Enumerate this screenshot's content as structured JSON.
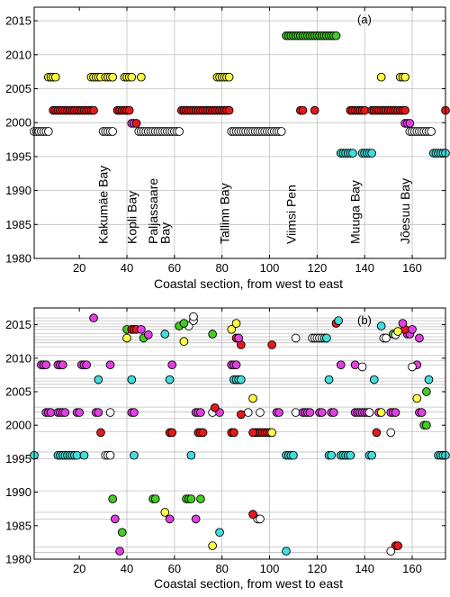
{
  "colors": {
    "white": "#ffffff",
    "yellow": "#ffff44",
    "red": "#e41a1c",
    "magenta": "#e040e0",
    "cyan": "#44dddd",
    "green": "#44cc22",
    "grid": "#c0c0c0"
  },
  "chart_data": [
    {
      "type": "scatter",
      "panel_label": "(a)",
      "xlabel": "Coastal section, from west to east",
      "xlim": [
        1,
        174
      ],
      "ylim": [
        1980,
        2017
      ],
      "xticks": [
        20,
        40,
        60,
        80,
        100,
        120,
        140,
        160
      ],
      "yticks": [
        1980,
        1985,
        1990,
        1995,
        2000,
        2005,
        2010,
        2015
      ],
      "x_gridlines": [
        40,
        60,
        80,
        100,
        120,
        140,
        160
      ],
      "annotations": [
        {
          "text": "Kakumäe Bay",
          "x": 30
        },
        {
          "text": "Kopli Bay",
          "x": 42
        },
        {
          "text": "Paljassaare",
          "x": 51
        },
        {
          "text": "Bay",
          "x": 56
        },
        {
          "text": "Tallinn Bay",
          "x": 81
        },
        {
          "text": "Viimsi Pen",
          "x": 109
        },
        {
          "text": "Muuga Bay",
          "x": 136
        },
        {
          "text": "Jõesuu Bay",
          "x": 157
        }
      ],
      "runs": [
        {
          "year": 1998.7,
          "x0": 1,
          "x1": 7,
          "color": "white"
        },
        {
          "year": 2006.7,
          "x0": 7,
          "x1": 10,
          "color": "yellow"
        },
        {
          "year": 2001.8,
          "x0": 9,
          "x1": 26,
          "color": "red"
        },
        {
          "year": 2006.7,
          "x0": 25,
          "x1": 29,
          "color": "yellow"
        },
        {
          "year": 2006.7,
          "x0": 31,
          "x1": 34,
          "color": "yellow"
        },
        {
          "year": 1998.7,
          "x0": 30,
          "x1": 34,
          "color": "white"
        },
        {
          "year": 2006.7,
          "x0": 39,
          "x1": 42,
          "color": "yellow"
        },
        {
          "year": 2006.7,
          "x0": 46,
          "x1": 46,
          "color": "yellow"
        },
        {
          "year": 2001.8,
          "x0": 36,
          "x1": 41,
          "color": "red"
        },
        {
          "year": 1999.9,
          "x0": 42,
          "x1": 43,
          "color": "magenta"
        },
        {
          "year": 1999.9,
          "x0": 44,
          "x1": 44,
          "color": "red"
        },
        {
          "year": 1998.7,
          "x0": 45,
          "x1": 62,
          "color": "white"
        },
        {
          "year": 2001.8,
          "x0": 63,
          "x1": 78,
          "color": "red"
        },
        {
          "year": 2006.7,
          "x0": 78,
          "x1": 83,
          "color": "yellow"
        },
        {
          "year": 2001.8,
          "x0": 79,
          "x1": 83,
          "color": "red"
        },
        {
          "year": 1998.7,
          "x0": 84,
          "x1": 105,
          "color": "white"
        },
        {
          "year": 2012.8,
          "x0": 107,
          "x1": 113,
          "color": "green"
        },
        {
          "year": 2012.8,
          "x0": 114,
          "x1": 128,
          "color": "green"
        },
        {
          "year": 2001.8,
          "x0": 113,
          "x1": 114,
          "color": "red"
        },
        {
          "year": 2001.8,
          "x0": 119,
          "x1": 119,
          "color": "red"
        },
        {
          "year": 1995.5,
          "x0": 130,
          "x1": 135,
          "color": "cyan"
        },
        {
          "year": 2001.8,
          "x0": 134,
          "x1": 140,
          "color": "red"
        },
        {
          "year": 1995.5,
          "x0": 139,
          "x1": 143,
          "color": "cyan"
        },
        {
          "year": 2001.8,
          "x0": 143,
          "x1": 154,
          "color": "red"
        },
        {
          "year": 2006.7,
          "x0": 147,
          "x1": 147,
          "color": "yellow"
        },
        {
          "year": 2006.7,
          "x0": 155,
          "x1": 157,
          "color": "yellow"
        },
        {
          "year": 2001.8,
          "x0": 155,
          "x1": 157,
          "color": "red"
        },
        {
          "year": 1999.9,
          "x0": 157,
          "x1": 159,
          "color": "magenta"
        },
        {
          "year": 1998.7,
          "x0": 159,
          "x1": 168,
          "color": "white"
        },
        {
          "year": 1995.5,
          "x0": 169,
          "x1": 174,
          "color": "cyan"
        },
        {
          "year": 2001.8,
          "x0": 174,
          "x1": 174,
          "color": "red"
        }
      ]
    },
    {
      "type": "scatter",
      "panel_label": "(b)",
      "xlabel": "Coastal section, from west to east",
      "xlim": [
        1,
        174
      ],
      "ylim": [
        1980,
        2017.5
      ],
      "xticks": [
        20,
        40,
        60,
        80,
        100,
        120,
        140,
        160
      ],
      "yticks": [
        1980,
        1985,
        1990,
        1995,
        2000,
        2005,
        2010,
        2015
      ],
      "x_gridlines": [
        40,
        60,
        80,
        100,
        120,
        140,
        160
      ],
      "year_gridlines": [
        1981,
        1981.8,
        1986,
        1987,
        1990.2,
        1995,
        1996,
        1999,
        2001,
        2002,
        2002.7,
        2005.6,
        2006.1,
        2006.6,
        2007,
        2009,
        2009.6,
        2010.4,
        2011.7,
        2012.3,
        2012.7,
        2013.2,
        2013.7,
        2014.3,
        2014.7,
        2015.1,
        2015.6,
        2016
      ],
      "runs": [
        {
          "year": 2009,
          "x0": 4,
          "x1": 6,
          "color": "magenta"
        },
        {
          "year": 2009,
          "x0": 11,
          "x1": 13,
          "color": "magenta"
        },
        {
          "year": 2009,
          "x0": 21,
          "x1": 23,
          "color": "magenta"
        },
        {
          "year": 2009,
          "x0": 33,
          "x1": 33,
          "color": "magenta"
        },
        {
          "year": 2009,
          "x0": 59,
          "x1": 59,
          "color": "magenta"
        },
        {
          "year": 2009,
          "x0": 84,
          "x1": 86,
          "color": "magenta"
        },
        {
          "year": 2009,
          "x0": 130,
          "x1": 130,
          "color": "magenta"
        },
        {
          "year": 2009,
          "x0": 136,
          "x1": 136,
          "color": "magenta"
        },
        {
          "year": 2009,
          "x0": 162,
          "x1": 162,
          "color": "magenta"
        },
        {
          "year": 2008.7,
          "x0": 139,
          "x1": 139,
          "color": "white"
        },
        {
          "year": 2008.7,
          "x0": 160,
          "x1": 160,
          "color": "white"
        },
        {
          "year": 2006.8,
          "x0": 28,
          "x1": 28,
          "color": "cyan"
        },
        {
          "year": 2006.8,
          "x0": 42,
          "x1": 42,
          "color": "cyan"
        },
        {
          "year": 2006.8,
          "x0": 58,
          "x1": 58,
          "color": "cyan"
        },
        {
          "year": 2006.8,
          "x0": 85,
          "x1": 88,
          "color": "cyan"
        },
        {
          "year": 2006.8,
          "x0": 125,
          "x1": 125,
          "color": "cyan"
        },
        {
          "year": 2006.8,
          "x0": 144,
          "x1": 144,
          "color": "cyan"
        },
        {
          "year": 2006.8,
          "x0": 167,
          "x1": 167,
          "color": "cyan"
        },
        {
          "year": 2001.9,
          "x0": 6,
          "x1": 8,
          "color": "magenta"
        },
        {
          "year": 2001.9,
          "x0": 11,
          "x1": 14,
          "color": "magenta"
        },
        {
          "year": 2001.9,
          "x0": 19,
          "x1": 20,
          "color": "magenta"
        },
        {
          "year": 2001.9,
          "x0": 27,
          "x1": 28,
          "color": "magenta"
        },
        {
          "year": 2001.9,
          "x0": 33,
          "x1": 33,
          "color": "white"
        },
        {
          "year": 2001.9,
          "x0": 42,
          "x1": 43,
          "color": "magenta"
        },
        {
          "year": 2001.9,
          "x0": 69,
          "x1": 71,
          "color": "magenta"
        },
        {
          "year": 2001.9,
          "x0": 76,
          "x1": 76,
          "color": "white"
        },
        {
          "year": 2001.9,
          "x0": 79,
          "x1": 79,
          "color": "magenta"
        },
        {
          "year": 2001.9,
          "x0": 91,
          "x1": 91,
          "color": "white"
        },
        {
          "year": 2001.9,
          "x0": 96,
          "x1": 96,
          "color": "white"
        },
        {
          "year": 2001.9,
          "x0": 103,
          "x1": 104,
          "color": "magenta"
        },
        {
          "year": 2001.9,
          "x0": 111,
          "x1": 111,
          "color": "white"
        },
        {
          "year": 2001.9,
          "x0": 114,
          "x1": 117,
          "color": "magenta"
        },
        {
          "year": 2001.9,
          "x0": 121,
          "x1": 122,
          "color": "magenta"
        },
        {
          "year": 2001.9,
          "x0": 126,
          "x1": 127,
          "color": "magenta"
        },
        {
          "year": 2001.9,
          "x0": 136,
          "x1": 142,
          "color": "magenta"
        },
        {
          "year": 2001.9,
          "x0": 146,
          "x1": 146,
          "color": "magenta"
        },
        {
          "year": 2001.9,
          "x0": 151,
          "x1": 153,
          "color": "magenta"
        },
        {
          "year": 2001.9,
          "x0": 163,
          "x1": 164,
          "color": "magenta"
        },
        {
          "year": 2001.9,
          "x0": 147,
          "x1": 147,
          "color": "yellow"
        },
        {
          "year": 2001.9,
          "x0": 142,
          "x1": 142,
          "color": "white"
        },
        {
          "year": 2002.6,
          "x0": 77,
          "x1": 77,
          "color": "red"
        },
        {
          "year": 2001.6,
          "x0": 88,
          "x1": 88,
          "color": "red"
        },
        {
          "year": 1998.9,
          "x0": 29,
          "x1": 29,
          "color": "red"
        },
        {
          "year": 1998.9,
          "x0": 58,
          "x1": 59,
          "color": "red"
        },
        {
          "year": 1998.9,
          "x0": 70,
          "x1": 72,
          "color": "red"
        },
        {
          "year": 1998.9,
          "x0": 84,
          "x1": 85,
          "color": "red"
        },
        {
          "year": 1998.9,
          "x0": 94,
          "x1": 100,
          "color": "red"
        },
        {
          "year": 1998.9,
          "x0": 101,
          "x1": 101,
          "color": "yellow"
        },
        {
          "year": 1998.9,
          "x0": 93,
          "x1": 93,
          "color": "red"
        },
        {
          "year": 1998.9,
          "x0": 145,
          "x1": 145,
          "color": "red"
        },
        {
          "year": 1998.9,
          "x0": 151,
          "x1": 151,
          "color": "white"
        },
        {
          "year": 1995.5,
          "x0": 1,
          "x1": 1,
          "color": "cyan"
        },
        {
          "year": 1995.5,
          "x0": 11,
          "x1": 19,
          "color": "cyan"
        },
        {
          "year": 1995.5,
          "x0": 22,
          "x1": 22,
          "color": "cyan"
        },
        {
          "year": 1995.5,
          "x0": 31,
          "x1": 33,
          "color": "white"
        },
        {
          "year": 1995.5,
          "x0": 43,
          "x1": 43,
          "color": "cyan"
        },
        {
          "year": 1995.5,
          "x0": 67,
          "x1": 67,
          "color": "cyan"
        },
        {
          "year": 1995.5,
          "x0": 107,
          "x1": 110,
          "color": "cyan"
        },
        {
          "year": 1995.5,
          "x0": 125,
          "x1": 126,
          "color": "cyan"
        },
        {
          "year": 1995.5,
          "x0": 130,
          "x1": 134,
          "color": "cyan"
        },
        {
          "year": 1995.5,
          "x0": 142,
          "x1": 143,
          "color": "cyan"
        },
        {
          "year": 1995.5,
          "x0": 171,
          "x1": 174,
          "color": "cyan"
        },
        {
          "year": 2004,
          "x0": 93,
          "x1": 93,
          "color": "yellow"
        },
        {
          "year": 2004,
          "x0": 162,
          "x1": 162,
          "color": "yellow"
        },
        {
          "year": 2005,
          "x0": 166,
          "x1": 166,
          "color": "green"
        },
        {
          "year": 2000,
          "x0": 165,
          "x1": 166,
          "color": "green"
        },
        {
          "year": 2012,
          "x0": 101,
          "x1": 101,
          "color": "red"
        },
        {
          "year": 2012,
          "x0": 88,
          "x1": 88,
          "color": "red"
        },
        {
          "year": 2013,
          "x0": 111,
          "x1": 111,
          "color": "white"
        },
        {
          "year": 2013,
          "x0": 118,
          "x1": 122,
          "color": "white"
        },
        {
          "year": 2013,
          "x0": 123,
          "x1": 124,
          "color": "cyan"
        },
        {
          "year": 2013,
          "x0": 148,
          "x1": 149,
          "color": "white"
        },
        {
          "year": 2013,
          "x0": 163,
          "x1": 163,
          "color": "magenta"
        },
        {
          "year": 2013,
          "x0": 40,
          "x1": 40,
          "color": "yellow"
        },
        {
          "year": 2013,
          "x0": 47,
          "x1": 47,
          "color": "green"
        },
        {
          "year": 2013,
          "x0": 86,
          "x1": 86,
          "color": "red"
        },
        {
          "year": 2013,
          "x0": 87,
          "x1": 87,
          "color": "magenta"
        },
        {
          "year": 2012.5,
          "x0": 64,
          "x1": 64,
          "color": "yellow"
        },
        {
          "year": 2013.6,
          "x0": 56,
          "x1": 56,
          "color": "cyan"
        },
        {
          "year": 2013.6,
          "x0": 76,
          "x1": 76,
          "color": "green"
        },
        {
          "year": 2013.6,
          "x0": 152,
          "x1": 152,
          "color": "green"
        },
        {
          "year": 2013.6,
          "x0": 158,
          "x1": 159,
          "color": "magenta"
        },
        {
          "year": 2014.3,
          "x0": 40,
          "x1": 40,
          "color": "green"
        },
        {
          "year": 2014.3,
          "x0": 42,
          "x1": 44,
          "color": "red"
        },
        {
          "year": 2014.3,
          "x0": 46,
          "x1": 46,
          "color": "magenta"
        },
        {
          "year": 2014.3,
          "x0": 84,
          "x1": 84,
          "color": "yellow"
        },
        {
          "year": 2014.3,
          "x0": 157,
          "x1": 157,
          "color": "red"
        },
        {
          "year": 2014.3,
          "x0": 160,
          "x1": 160,
          "color": "magenta"
        },
        {
          "year": 2014.8,
          "x0": 62,
          "x1": 62,
          "color": "green"
        },
        {
          "year": 2014.8,
          "x0": 66,
          "x1": 66,
          "color": "white"
        },
        {
          "year": 2014.8,
          "x0": 147,
          "x1": 147,
          "color": "cyan"
        },
        {
          "year": 2015.2,
          "x0": 64,
          "x1": 64,
          "color": "green"
        },
        {
          "year": 2015.2,
          "x0": 86,
          "x1": 86,
          "color": "yellow"
        },
        {
          "year": 2015.2,
          "x0": 128,
          "x1": 128,
          "color": "red"
        },
        {
          "year": 2015.2,
          "x0": 156,
          "x1": 156,
          "color": "magenta"
        },
        {
          "year": 2015.6,
          "x0": 129,
          "x1": 129,
          "color": "cyan"
        },
        {
          "year": 2015.6,
          "x0": 68,
          "x1": 68,
          "color": "white"
        },
        {
          "year": 2016,
          "x0": 26,
          "x1": 26,
          "color": "magenta"
        },
        {
          "year": 2016.2,
          "x0": 68,
          "x1": 68,
          "color": "white"
        },
        {
          "year": 2013.5,
          "x0": 49,
          "x1": 49,
          "color": "magenta"
        },
        {
          "year": 2013.5,
          "x0": 153,
          "x1": 153,
          "color": "white"
        },
        {
          "year": 2014,
          "x0": 154,
          "x1": 154,
          "color": "yellow"
        },
        {
          "year": 1989,
          "x0": 34,
          "x1": 34,
          "color": "green"
        },
        {
          "year": 1989,
          "x0": 51,
          "x1": 52,
          "color": "green"
        },
        {
          "year": 1989,
          "x0": 65,
          "x1": 67,
          "color": "green"
        },
        {
          "year": 1989,
          "x0": 71,
          "x1": 71,
          "color": "green"
        },
        {
          "year": 1987,
          "x0": 56,
          "x1": 56,
          "color": "yellow"
        },
        {
          "year": 1986,
          "x0": 35,
          "x1": 35,
          "color": "magenta"
        },
        {
          "year": 1986,
          "x0": 58,
          "x1": 58,
          "color": "magenta"
        },
        {
          "year": 1986,
          "x0": 69,
          "x1": 69,
          "color": "magenta"
        },
        {
          "year": 1986,
          "x0": 95,
          "x1": 96,
          "color": "white"
        },
        {
          "year": 1986.7,
          "x0": 93,
          "x1": 93,
          "color": "red"
        },
        {
          "year": 1984,
          "x0": 38,
          "x1": 38,
          "color": "green"
        },
        {
          "year": 1984,
          "x0": 79,
          "x1": 79,
          "color": "cyan"
        },
        {
          "year": 1982,
          "x0": 76,
          "x1": 76,
          "color": "yellow"
        },
        {
          "year": 1982,
          "x0": 153,
          "x1": 154,
          "color": "red"
        },
        {
          "year": 1981.2,
          "x0": 37,
          "x1": 37,
          "color": "magenta"
        },
        {
          "year": 1981.2,
          "x0": 107,
          "x1": 107,
          "color": "cyan"
        },
        {
          "year": 1981.2,
          "x0": 151,
          "x1": 151,
          "color": "white"
        }
      ]
    }
  ]
}
